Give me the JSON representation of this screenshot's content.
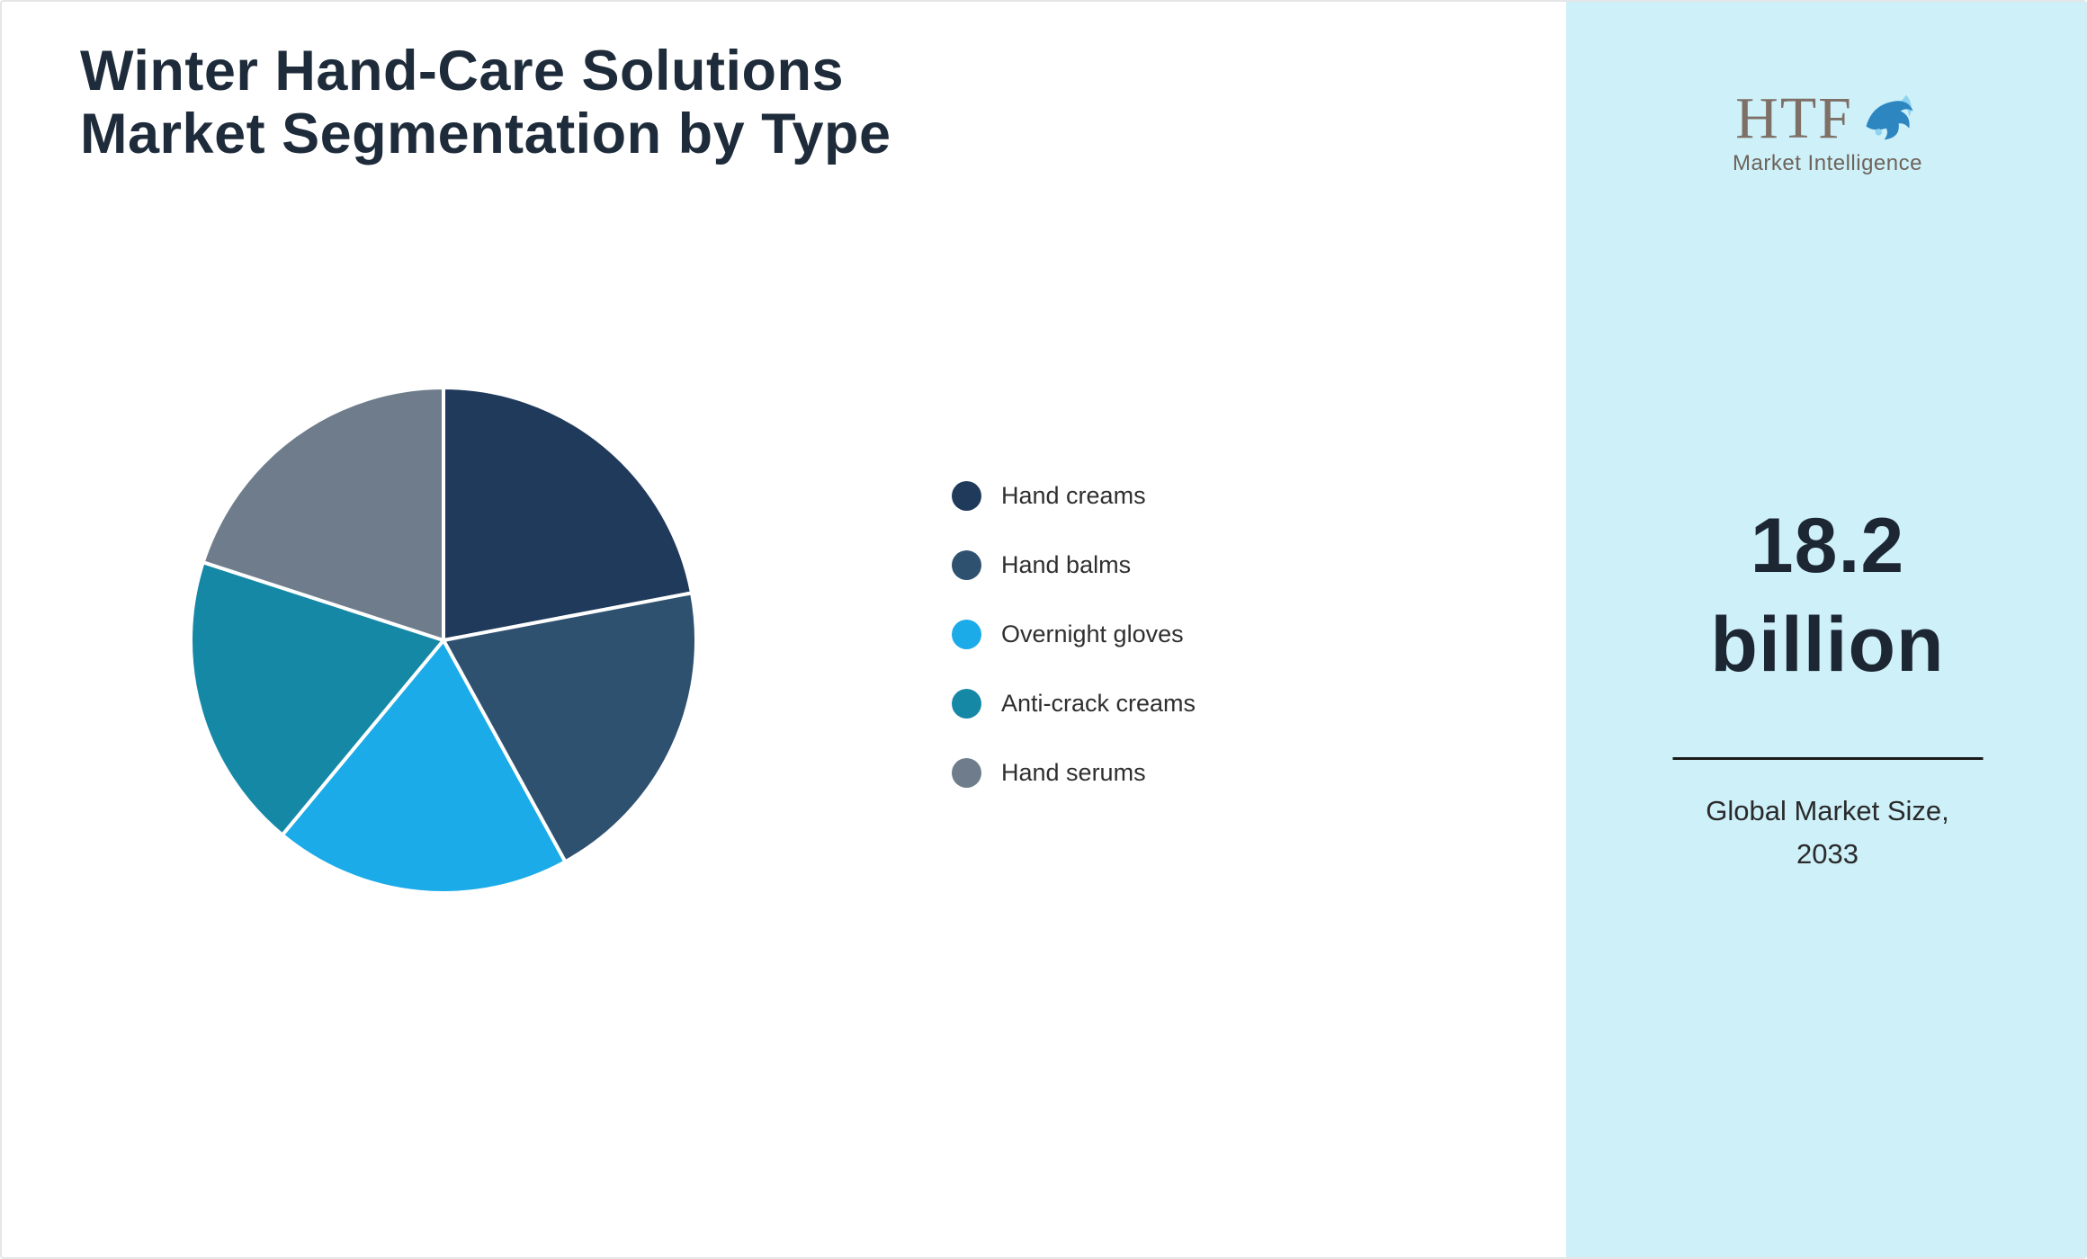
{
  "title": {
    "line1": "Winter Hand-Care Solutions",
    "line2": "Market Segmentation by Type"
  },
  "logo": {
    "name": "HTF",
    "subtitle": "Market Intelligence"
  },
  "sidebar": {
    "background": "#cdf0f9",
    "market_size_line1": "18.2",
    "market_size_line2": "billion",
    "caption_line1": "Global Market Size,",
    "caption_line2": "2033"
  },
  "chart_data": {
    "type": "pie",
    "title": "Winter Hand-Care Solutions Market Segmentation by Type",
    "start_angle_deg": 0,
    "direction": "clockwise",
    "legend_position": "right",
    "slice_border_color": "#ffffff",
    "segments": [
      {
        "label": "Hand creams",
        "value": 22,
        "color": "#203a5c"
      },
      {
        "label": "Hand balms",
        "value": 20,
        "color": "#2f5170"
      },
      {
        "label": "Overnight gloves",
        "value": 19,
        "color": "#1aabe8"
      },
      {
        "label": "Anti-crack creams",
        "value": 19,
        "color": "#1588a6"
      },
      {
        "label": "Hand serums",
        "value": 20,
        "color": "#6e7c8b"
      }
    ]
  }
}
